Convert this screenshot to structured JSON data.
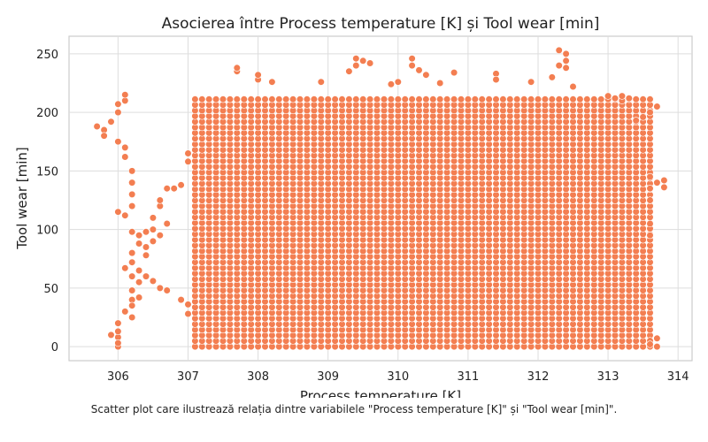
{
  "chart_data": {
    "type": "scatter",
    "title": "Asocierea între Process temperature [K] și Tool wear [min]",
    "xlabel": "Process temperature [K]",
    "ylabel": "Tool wear [min]",
    "xlim": [
      305.3,
      314.2
    ],
    "ylim": [
      -12,
      265
    ],
    "xticks": [
      306,
      307,
      308,
      309,
      310,
      311,
      312,
      313,
      314
    ],
    "yticks": [
      0,
      50,
      100,
      150,
      200,
      250
    ],
    "grid": true,
    "legend": "none",
    "point_color": "#f37e51",
    "point_edge_color": "#ffffff",
    "density": {
      "x_range": [
        307.1,
        313.6
      ],
      "x_step": 0.1,
      "y_range": [
        0,
        212
      ],
      "y_step": 4.8
    },
    "points": [
      {
        "x": 305.7,
        "y": 188
      },
      {
        "x": 305.8,
        "y": 185
      },
      {
        "x": 305.8,
        "y": 180
      },
      {
        "x": 305.9,
        "y": 192
      },
      {
        "x": 305.9,
        "y": 10
      },
      {
        "x": 306.0,
        "y": 200
      },
      {
        "x": 306.0,
        "y": 175
      },
      {
        "x": 306.0,
        "y": 8
      },
      {
        "x": 306.0,
        "y": 0
      },
      {
        "x": 306.0,
        "y": 3
      },
      {
        "x": 306.0,
        "y": 13
      },
      {
        "x": 306.0,
        "y": 20
      },
      {
        "x": 306.0,
        "y": 115
      },
      {
        "x": 306.0,
        "y": 207
      },
      {
        "x": 306.1,
        "y": 210
      },
      {
        "x": 306.1,
        "y": 215
      },
      {
        "x": 306.1,
        "y": 170
      },
      {
        "x": 306.1,
        "y": 162
      },
      {
        "x": 306.1,
        "y": 67
      },
      {
        "x": 306.1,
        "y": 112
      },
      {
        "x": 306.1,
        "y": 30
      },
      {
        "x": 306.2,
        "y": 150
      },
      {
        "x": 306.2,
        "y": 140
      },
      {
        "x": 306.2,
        "y": 130
      },
      {
        "x": 306.2,
        "y": 120
      },
      {
        "x": 306.2,
        "y": 98
      },
      {
        "x": 306.2,
        "y": 80
      },
      {
        "x": 306.2,
        "y": 72
      },
      {
        "x": 306.2,
        "y": 60
      },
      {
        "x": 306.2,
        "y": 48
      },
      {
        "x": 306.2,
        "y": 40
      },
      {
        "x": 306.2,
        "y": 35
      },
      {
        "x": 306.2,
        "y": 25
      },
      {
        "x": 306.3,
        "y": 95
      },
      {
        "x": 306.3,
        "y": 88
      },
      {
        "x": 306.3,
        "y": 65
      },
      {
        "x": 306.3,
        "y": 55
      },
      {
        "x": 306.3,
        "y": 42
      },
      {
        "x": 306.4,
        "y": 98
      },
      {
        "x": 306.4,
        "y": 85
      },
      {
        "x": 306.4,
        "y": 78
      },
      {
        "x": 306.4,
        "y": 60
      },
      {
        "x": 306.5,
        "y": 100
      },
      {
        "x": 306.5,
        "y": 90
      },
      {
        "x": 306.5,
        "y": 56
      },
      {
        "x": 306.5,
        "y": 110
      },
      {
        "x": 306.6,
        "y": 95
      },
      {
        "x": 306.6,
        "y": 120
      },
      {
        "x": 306.6,
        "y": 125
      },
      {
        "x": 306.6,
        "y": 50
      },
      {
        "x": 306.7,
        "y": 135
      },
      {
        "x": 306.7,
        "y": 105
      },
      {
        "x": 306.7,
        "y": 48
      },
      {
        "x": 306.8,
        "y": 135
      },
      {
        "x": 306.9,
        "y": 40
      },
      {
        "x": 306.9,
        "y": 138
      },
      {
        "x": 307.0,
        "y": 28
      },
      {
        "x": 307.0,
        "y": 36
      },
      {
        "x": 307.0,
        "y": 158
      },
      {
        "x": 307.0,
        "y": 165
      },
      {
        "x": 307.7,
        "y": 235
      },
      {
        "x": 307.7,
        "y": 238
      },
      {
        "x": 308.0,
        "y": 228
      },
      {
        "x": 308.0,
        "y": 232
      },
      {
        "x": 308.2,
        "y": 226
      },
      {
        "x": 308.9,
        "y": 226
      },
      {
        "x": 309.3,
        "y": 235
      },
      {
        "x": 309.4,
        "y": 246
      },
      {
        "x": 309.4,
        "y": 240
      },
      {
        "x": 309.5,
        "y": 244
      },
      {
        "x": 309.6,
        "y": 242
      },
      {
        "x": 309.9,
        "y": 224
      },
      {
        "x": 310.0,
        "y": 226
      },
      {
        "x": 310.2,
        "y": 246
      },
      {
        "x": 310.2,
        "y": 240
      },
      {
        "x": 310.3,
        "y": 236
      },
      {
        "x": 310.4,
        "y": 232
      },
      {
        "x": 310.6,
        "y": 225
      },
      {
        "x": 310.8,
        "y": 234
      },
      {
        "x": 311.4,
        "y": 233
      },
      {
        "x": 311.4,
        "y": 228
      },
      {
        "x": 311.9,
        "y": 226
      },
      {
        "x": 312.2,
        "y": 230
      },
      {
        "x": 312.3,
        "y": 253
      },
      {
        "x": 312.3,
        "y": 240
      },
      {
        "x": 312.4,
        "y": 250
      },
      {
        "x": 312.4,
        "y": 244
      },
      {
        "x": 312.4,
        "y": 238
      },
      {
        "x": 312.5,
        "y": 222
      },
      {
        "x": 313.0,
        "y": 214
      },
      {
        "x": 313.1,
        "y": 212
      },
      {
        "x": 313.2,
        "y": 210
      },
      {
        "x": 313.2,
        "y": 214
      },
      {
        "x": 313.3,
        "y": 212
      },
      {
        "x": 313.4,
        "y": 193
      },
      {
        "x": 313.5,
        "y": 196
      },
      {
        "x": 313.6,
        "y": 200
      },
      {
        "x": 313.6,
        "y": 145
      },
      {
        "x": 313.6,
        "y": 135
      },
      {
        "x": 313.6,
        "y": 125
      },
      {
        "x": 313.6,
        "y": 105
      },
      {
        "x": 313.6,
        "y": 95
      },
      {
        "x": 313.6,
        "y": 5
      },
      {
        "x": 313.6,
        "y": 2
      },
      {
        "x": 313.7,
        "y": 205
      },
      {
        "x": 313.7,
        "y": 140
      },
      {
        "x": 313.7,
        "y": 7
      },
      {
        "x": 313.7,
        "y": 0
      },
      {
        "x": 313.8,
        "y": 142
      },
      {
        "x": 313.8,
        "y": 136
      }
    ]
  },
  "caption": "Scatter plot care ilustrează relația dintre variabilele \"Process temperature [K]\" și \"Tool wear [min]\"."
}
